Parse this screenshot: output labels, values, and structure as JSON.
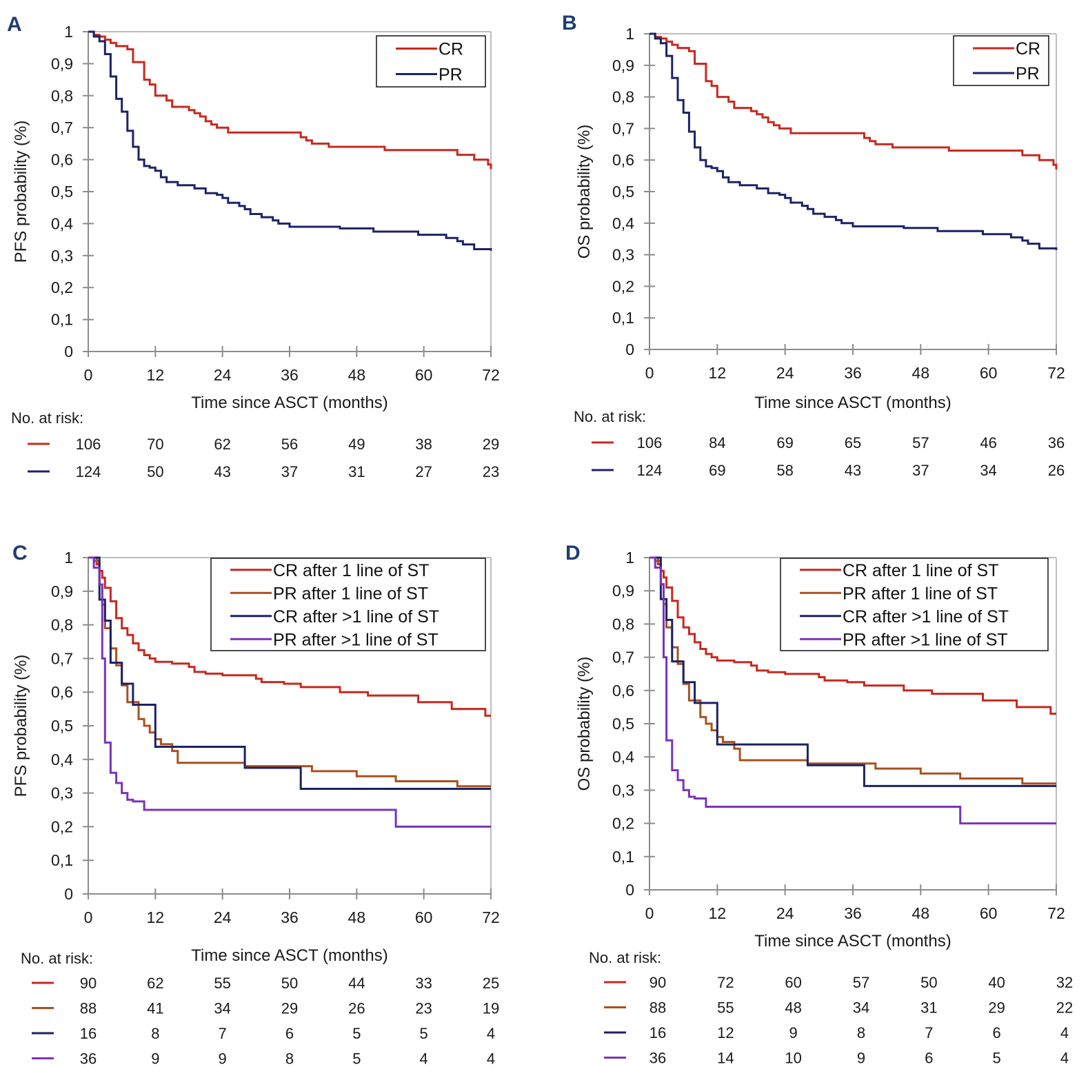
{
  "figure": {
    "colors": {
      "cr": "#c8281e",
      "pr": "#1b2266",
      "cr1": "#c8281e",
      "pr1": "#a9501e",
      "crm": "#1b2266",
      "prm": "#7b33b8",
      "axis": "#8c8c8c",
      "panel_letter": "#1f3d73"
    }
  },
  "chart_data": [
    {
      "id": "A",
      "type": "line",
      "step": true,
      "panel_letter": "A",
      "ylabel": "PFS probability (%)",
      "xlabel": "Time since ASCT (months)",
      "xlim": [
        0,
        72
      ],
      "ylim": [
        0,
        1
      ],
      "x_ticks": [
        "0",
        "12",
        "24",
        "36",
        "48",
        "60",
        "72"
      ],
      "y_ticks": [
        "0",
        "0,1",
        "0,2",
        "0,3",
        "0,4",
        "0,5",
        "0,6",
        "0,7",
        "0,8",
        "0,9",
        "1"
      ],
      "grid": false,
      "legend_position": "top-right",
      "series": [
        {
          "name": "CR",
          "color_key": "cr",
          "x": [
            0,
            1,
            2,
            3,
            4,
            5,
            7,
            8,
            9,
            10,
            11,
            12,
            13,
            14,
            15,
            16,
            18,
            19,
            20,
            21,
            22,
            23,
            25,
            28,
            38,
            39,
            40,
            43,
            53,
            66,
            69,
            71.5,
            72
          ],
          "y": [
            1,
            0.99,
            0.985,
            0.975,
            0.965,
            0.955,
            0.945,
            0.905,
            0.905,
            0.85,
            0.835,
            0.8,
            0.8,
            0.785,
            0.765,
            0.765,
            0.755,
            0.745,
            0.735,
            0.72,
            0.71,
            0.7,
            0.685,
            0.685,
            0.67,
            0.66,
            0.65,
            0.64,
            0.63,
            0.615,
            0.6,
            0.585,
            0.57
          ]
        },
        {
          "name": "PR",
          "color_key": "pr",
          "x": [
            0,
            1,
            2,
            3,
            4,
            5,
            6,
            7,
            8,
            9,
            10,
            11,
            12,
            13,
            14,
            16,
            18,
            19,
            21,
            23,
            24,
            25,
            27,
            28,
            29,
            31,
            33,
            34,
            36,
            45,
            51,
            59,
            64,
            66,
            67,
            69,
            72
          ],
          "y": [
            1,
            0.985,
            0.97,
            0.93,
            0.86,
            0.79,
            0.75,
            0.69,
            0.64,
            0.6,
            0.58,
            0.575,
            0.565,
            0.545,
            0.53,
            0.52,
            0.52,
            0.51,
            0.495,
            0.49,
            0.48,
            0.465,
            0.455,
            0.445,
            0.43,
            0.42,
            0.41,
            0.4,
            0.39,
            0.385,
            0.375,
            0.365,
            0.355,
            0.345,
            0.335,
            0.32,
            0.315
          ]
        }
      ],
      "at_risk": {
        "label": "No. at risk:",
        "rows": [
          {
            "color_key": "cr",
            "values": [
              "106",
              "70",
              "62",
              "56",
              "49",
              "38",
              "29"
            ]
          },
          {
            "color_key": "pr",
            "values": [
              "124",
              "50",
              "43",
              "37",
              "31",
              "27",
              "23"
            ]
          }
        ]
      }
    },
    {
      "id": "B",
      "type": "line",
      "step": true,
      "panel_letter": "B",
      "ylabel": "OS probability (%)",
      "xlabel": "Time since ASCT (months)",
      "xlim": [
        0,
        72
      ],
      "ylim": [
        0,
        1
      ],
      "x_ticks": [
        "0",
        "12",
        "24",
        "36",
        "48",
        "60",
        "72"
      ],
      "y_ticks": [
        "0",
        "0,1",
        "0,2",
        "0,3",
        "0,4",
        "0,5",
        "0,6",
        "0,7",
        "0,8",
        "0,9",
        "1"
      ],
      "grid": false,
      "legend_position": "top-right",
      "series": [
        {
          "name": "CR",
          "color_key": "cr",
          "x": [
            0,
            1,
            2,
            3,
            4,
            5,
            7,
            8,
            9,
            10,
            11,
            12,
            13,
            14,
            15,
            16,
            18,
            19,
            20,
            21,
            22,
            23,
            25,
            28,
            38,
            39,
            40,
            43,
            53,
            66,
            69,
            71.5,
            72
          ],
          "y": [
            1,
            0.99,
            0.985,
            0.975,
            0.965,
            0.955,
            0.945,
            0.905,
            0.905,
            0.85,
            0.835,
            0.8,
            0.8,
            0.785,
            0.765,
            0.765,
            0.755,
            0.745,
            0.735,
            0.72,
            0.71,
            0.7,
            0.685,
            0.685,
            0.67,
            0.66,
            0.65,
            0.64,
            0.63,
            0.615,
            0.6,
            0.585,
            0.57
          ]
        },
        {
          "name": "PR",
          "color_key": "pr",
          "x": [
            0,
            1,
            2,
            3,
            4,
            5,
            6,
            7,
            8,
            9,
            10,
            11,
            12,
            13,
            14,
            16,
            18,
            19,
            21,
            23,
            24,
            25,
            27,
            28,
            29,
            31,
            33,
            34,
            36,
            45,
            51,
            59,
            64,
            66,
            67,
            69,
            72
          ],
          "y": [
            1,
            0.985,
            0.97,
            0.93,
            0.86,
            0.79,
            0.75,
            0.69,
            0.64,
            0.6,
            0.58,
            0.575,
            0.565,
            0.545,
            0.53,
            0.52,
            0.52,
            0.51,
            0.495,
            0.49,
            0.48,
            0.465,
            0.455,
            0.445,
            0.43,
            0.42,
            0.41,
            0.4,
            0.39,
            0.385,
            0.375,
            0.365,
            0.355,
            0.345,
            0.335,
            0.32,
            0.315
          ]
        }
      ],
      "at_risk": {
        "label": "No. at risk:",
        "rows": [
          {
            "color_key": "cr",
            "values": [
              "106",
              "84",
              "69",
              "65",
              "57",
              "46",
              "36"
            ]
          },
          {
            "color_key": "pr",
            "values": [
              "124",
              "69",
              "58",
              "43",
              "37",
              "34",
              "26"
            ]
          }
        ]
      }
    },
    {
      "id": "C",
      "type": "line",
      "step": true,
      "panel_letter": "C",
      "ylabel": "PFS probability (%)",
      "xlabel": "Time since ASCT (months)",
      "xlim": [
        0,
        72
      ],
      "ylim": [
        0,
        1
      ],
      "x_ticks": [
        "0",
        "12",
        "24",
        "36",
        "48",
        "60",
        "72"
      ],
      "y_ticks": [
        "0",
        "0,1",
        "0,2",
        "0,3",
        "0,4",
        "0,5",
        "0,6",
        "0,7",
        "0,8",
        "0,9",
        "1"
      ],
      "grid": false,
      "legend_position": "top-right",
      "series": [
        {
          "name": "CR after 1 line of ST",
          "color_key": "cr1",
          "x": [
            0,
            1.5,
            2,
            2.5,
            3,
            4,
            5,
            6,
            7,
            8,
            9,
            10,
            11,
            12,
            15,
            18,
            19,
            21,
            24,
            30,
            31,
            35,
            38,
            45,
            50,
            59,
            65,
            71,
            72
          ],
          "y": [
            1,
            0.98,
            0.96,
            0.94,
            0.91,
            0.87,
            0.82,
            0.79,
            0.77,
            0.745,
            0.725,
            0.71,
            0.7,
            0.69,
            0.685,
            0.675,
            0.66,
            0.655,
            0.65,
            0.64,
            0.63,
            0.625,
            0.615,
            0.6,
            0.59,
            0.57,
            0.55,
            0.53,
            0.53
          ]
        },
        {
          "name": "PR after 1 line of ST",
          "color_key": "pr1",
          "x": [
            0,
            1,
            2,
            2.5,
            3,
            4,
            5,
            6,
            7,
            9,
            10,
            11,
            12,
            13,
            15,
            16,
            18,
            28,
            40,
            48,
            55,
            66,
            72
          ],
          "y": [
            1,
            0.99,
            0.92,
            0.86,
            0.79,
            0.73,
            0.68,
            0.62,
            0.57,
            0.52,
            0.5,
            0.48,
            0.46,
            0.445,
            0.425,
            0.39,
            0.39,
            0.38,
            0.365,
            0.35,
            0.335,
            0.32,
            0.32
          ]
        },
        {
          "name": "CR after >1 line of ST",
          "color_key": "crm",
          "x": [
            0,
            2,
            3,
            4,
            6,
            8,
            12,
            28,
            38,
            72
          ],
          "y": [
            1,
            0.875,
            0.8125,
            0.6875,
            0.625,
            0.5625,
            0.4375,
            0.375,
            0.3125,
            0.3125
          ]
        },
        {
          "name": "PR after >1 line of ST",
          "color_key": "prm",
          "x": [
            0,
            1,
            2,
            2.5,
            3,
            4,
            5,
            6,
            7,
            8,
            10,
            55,
            72
          ],
          "y": [
            1,
            0.97,
            0.92,
            0.7,
            0.45,
            0.36,
            0.33,
            0.3,
            0.28,
            0.275,
            0.25,
            0.2,
            0.2
          ]
        }
      ],
      "at_risk": {
        "label": "No. at risk:",
        "rows": [
          {
            "color_key": "cr1",
            "values": [
              "90",
              "62",
              "55",
              "50",
              "44",
              "33",
              "25"
            ]
          },
          {
            "color_key": "pr1",
            "values": [
              "88",
              "41",
              "34",
              "29",
              "26",
              "23",
              "19"
            ]
          },
          {
            "color_key": "crm",
            "values": [
              "16",
              "8",
              "7",
              "6",
              "5",
              "5",
              "4"
            ]
          },
          {
            "color_key": "prm",
            "values": [
              "36",
              "9",
              "9",
              "8",
              "5",
              "4",
              "4"
            ]
          }
        ]
      }
    },
    {
      "id": "D",
      "type": "line",
      "step": true,
      "panel_letter": "D",
      "ylabel": "OS probability (%)",
      "xlabel": "Time since ASCT (months)",
      "xlim": [
        0,
        72
      ],
      "ylim": [
        0,
        1
      ],
      "x_ticks": [
        "0",
        "12",
        "24",
        "36",
        "48",
        "60",
        "72"
      ],
      "y_ticks": [
        "0",
        "0,1",
        "0,2",
        "0,3",
        "0,4",
        "0,5",
        "0,6",
        "0,7",
        "0,8",
        "0,9",
        "1"
      ],
      "grid": false,
      "legend_position": "top-right",
      "series": [
        {
          "name": "CR after 1 line of ST",
          "color_key": "cr1",
          "x": [
            0,
            1.5,
            2,
            2.5,
            3,
            4,
            5,
            6,
            7,
            8,
            9,
            10,
            11,
            12,
            15,
            18,
            19,
            21,
            24,
            30,
            31,
            35,
            38,
            45,
            50,
            59,
            65,
            71,
            72
          ],
          "y": [
            1,
            0.98,
            0.96,
            0.94,
            0.91,
            0.87,
            0.82,
            0.79,
            0.77,
            0.745,
            0.725,
            0.71,
            0.7,
            0.69,
            0.685,
            0.675,
            0.66,
            0.655,
            0.65,
            0.64,
            0.63,
            0.625,
            0.615,
            0.6,
            0.59,
            0.57,
            0.55,
            0.53,
            0.53
          ]
        },
        {
          "name": "PR after 1 line of ST",
          "color_key": "pr1",
          "x": [
            0,
            1,
            2,
            2.5,
            3,
            4,
            5,
            6,
            7,
            9,
            10,
            11,
            12,
            13,
            15,
            16,
            18,
            28,
            40,
            48,
            55,
            66,
            72
          ],
          "y": [
            1,
            0.99,
            0.92,
            0.86,
            0.79,
            0.73,
            0.68,
            0.62,
            0.57,
            0.52,
            0.5,
            0.48,
            0.46,
            0.445,
            0.425,
            0.39,
            0.39,
            0.38,
            0.365,
            0.35,
            0.335,
            0.32,
            0.32
          ]
        },
        {
          "name": "CR after >1 line of ST",
          "color_key": "crm",
          "x": [
            0,
            2,
            3,
            4,
            6,
            8,
            12,
            28,
            38,
            72
          ],
          "y": [
            1,
            0.875,
            0.8125,
            0.6875,
            0.625,
            0.5625,
            0.4375,
            0.375,
            0.3125,
            0.3125
          ]
        },
        {
          "name": "PR after >1 line of ST",
          "color_key": "prm",
          "x": [
            0,
            1,
            2,
            2.5,
            3,
            4,
            5,
            6,
            7,
            8,
            10,
            55,
            72
          ],
          "y": [
            1,
            0.97,
            0.92,
            0.7,
            0.45,
            0.36,
            0.33,
            0.3,
            0.28,
            0.275,
            0.25,
            0.2,
            0.2
          ]
        }
      ],
      "at_risk": {
        "label": "No. at risk:",
        "rows": [
          {
            "color_key": "cr1",
            "values": [
              "90",
              "72",
              "60",
              "57",
              "50",
              "40",
              "32"
            ]
          },
          {
            "color_key": "pr1",
            "values": [
              "88",
              "55",
              "48",
              "34",
              "31",
              "29",
              "22"
            ]
          },
          {
            "color_key": "crm",
            "values": [
              "16",
              "12",
              "9",
              "8",
              "7",
              "6",
              "4"
            ]
          },
          {
            "color_key": "prm",
            "values": [
              "36",
              "14",
              "10",
              "9",
              "6",
              "5",
              "4"
            ]
          }
        ]
      }
    }
  ]
}
